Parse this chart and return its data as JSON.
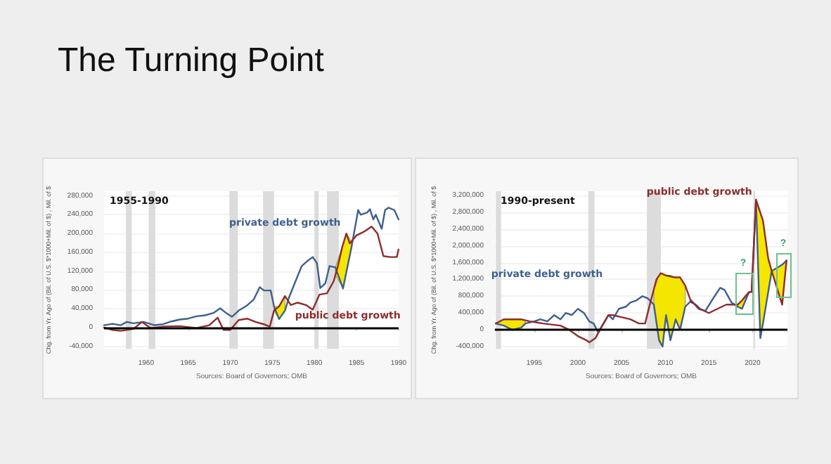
{
  "chart_data": [
    {
      "type": "line",
      "title": "The Turning Point",
      "ylabel": "Chg. from Yr. Ago of (Bil. of U.S. $*1000+Mil. of $) , Mil. of $",
      "annotations": [
        "1955-1990",
        "Sources: Board of Governors; OMB"
      ],
      "xlim": [
        1955,
        1990
      ],
      "xticks": [
        1960,
        1965,
        1970,
        1975,
        1980,
        1985,
        1990
      ],
      "ylim": [
        -45000,
        290000
      ],
      "yticks": [
        {
          "value": -40000,
          "label": "-40,000"
        },
        0,
        {
          "value": 40000,
          "label": "40,000"
        },
        {
          "value": 80000,
          "label": "80,000"
        },
        {
          "value": 120000,
          "label": "120,000"
        },
        {
          "value": 160000,
          "label": "160,000"
        },
        {
          "value": 200000,
          "label": "200,000"
        },
        {
          "value": 240000,
          "label": "240,000"
        },
        {
          "value": 280000,
          "label": "280,000"
        }
      ],
      "grid": "y",
      "marker": "none",
      "ref_lines": [
        {
          "axis": "y",
          "value": 0,
          "color": "#000000"
        }
      ],
      "bands": [
        {
          "axis": "x",
          "from": 1957.6,
          "to": 1958.3,
          "color": "#dcdcdc"
        },
        {
          "axis": "x",
          "from": 1960.3,
          "to": 1961.1,
          "color": "#dcdcdc"
        },
        {
          "axis": "x",
          "from": 1969.9,
          "to": 1970.9,
          "color": "#dcdcdc"
        },
        {
          "axis": "x",
          "from": 1973.9,
          "to": 1975.2,
          "color": "#dcdcdc"
        },
        {
          "axis": "x",
          "from": 1980.0,
          "to": 1980.5,
          "color": "#dcdcdc"
        },
        {
          "axis": "x",
          "from": 1981.5,
          "to": 1982.9,
          "color": "#dcdcdc"
        }
      ],
      "series": [
        {
          "type": "line",
          "name": "private debt growth",
          "color": "#3f5f8f",
          "x": [
            1955,
            1956,
            1957,
            1957.7,
            1958.5,
            1959.7,
            1961,
            1962,
            1963,
            1964,
            1965,
            1966,
            1967,
            1968,
            1968.8,
            1969.5,
            1970.2,
            1971,
            1972,
            1972.8,
            1973.5,
            1974,
            1974.8,
            1975.2,
            1975.8,
            1976.5,
            1977,
            1977.7,
            1978.5,
            1979.2,
            1979.8,
            1980.3,
            1980.7,
            1981.3,
            1981.8,
            1982.5,
            1983.4,
            1983.8,
            1984.4,
            1985.2,
            1985.5,
            1986.3,
            1986.6,
            1987,
            1987.3,
            1988,
            1988.4,
            1988.8,
            1989.5,
            1990
          ],
          "values": [
            5000,
            8000,
            5000,
            12000,
            9000,
            12000,
            5000,
            7000,
            13000,
            17000,
            19000,
            24000,
            26000,
            31000,
            41000,
            31000,
            23000,
            36000,
            47000,
            60000,
            86000,
            79000,
            79000,
            45000,
            18000,
            36000,
            65000,
            96000,
            131000,
            142000,
            150000,
            137000,
            84000,
            94000,
            131000,
            128000,
            83000,
            118000,
            170000,
            250000,
            240000,
            245000,
            252000,
            230000,
            240000,
            210000,
            250000,
            255000,
            250000,
            230000
          ],
          "lower": [
            null,
            null,
            null,
            null,
            null,
            null,
            null,
            null,
            null,
            null,
            null,
            null,
            null,
            null,
            null,
            null,
            null,
            null,
            null,
            null,
            null,
            null,
            null,
            36000,
            18000,
            36000,
            null,
            null,
            null,
            null,
            null,
            null,
            null,
            null,
            null,
            112000,
            83000,
            118000,
            170000,
            null,
            null,
            null,
            null,
            null,
            null,
            null,
            null,
            null,
            null,
            null
          ],
          "upper": [
            null,
            null,
            null,
            null,
            null,
            null,
            null,
            null,
            null,
            null,
            null,
            null,
            null,
            null,
            null,
            null,
            null,
            null,
            null,
            null,
            null,
            null,
            null,
            45000,
            45000,
            67000,
            null,
            null,
            null,
            null,
            null,
            null,
            null,
            null,
            null,
            128000,
            177000,
            200000,
            183000,
            null,
            null,
            null,
            null,
            null,
            null,
            null,
            null,
            null,
            null,
            null
          ]
        },
        {
          "type": "line",
          "name": "public debt growth",
          "color": "#8c2d2d",
          "x": [
            1955,
            1956,
            1957,
            1958.5,
            1959.5,
            1960.5,
            1962,
            1964,
            1966,
            1967.5,
            1968.5,
            1969.2,
            1970,
            1971,
            1972,
            1973,
            1974,
            1974.7,
            1975.2,
            1975.8,
            1976.5,
            1977.2,
            1978,
            1979,
            1979.8,
            1980.6,
            1981.5,
            1982.3,
            1982.8,
            1983.3,
            1983.8,
            1984.2,
            1985,
            1986,
            1986.8,
            1987.5,
            1988.2,
            1989,
            1989.8,
            1990
          ],
          "values": [
            0,
            -5000,
            -7000,
            -3000,
            12000,
            -1000,
            2000,
            3000,
            -1000,
            5000,
            21000,
            -5000,
            -5000,
            16000,
            19000,
            12000,
            7000,
            2000,
            36000,
            45000,
            67000,
            48000,
            53000,
            48000,
            38000,
            70000,
            73000,
            99000,
            131000,
            171000,
            200000,
            179000,
            196000,
            205000,
            215000,
            200000,
            152000,
            150000,
            150000,
            166000
          ]
        }
      ]
    },
    {
      "type": "line",
      "ylabel": "Chg. from Yr. Ago of (Bil. of U.S. $*1000+Mil. of $) , Mil. of $",
      "annotations": [
        "1990-present",
        "Sources: Board of Governors; OMB",
        "?",
        "?"
      ],
      "xlim": [
        1990.5,
        2024
      ],
      "xticks": [
        1995,
        2000,
        2005,
        2010,
        2015,
        2020
      ],
      "ylim": [
        -450000,
        3300000
      ],
      "yticks": [
        {
          "value": -400000,
          "label": "-400,000"
        },
        0,
        {
          "value": 400000,
          "label": "400,000"
        },
        {
          "value": 800000,
          "label": "800,000"
        },
        {
          "value": 1200000,
          "label": "1,200,000"
        },
        {
          "value": 1600000,
          "label": "1,600,000"
        },
        {
          "value": 2000000,
          "label": "2,000,000"
        },
        {
          "value": 2400000,
          "label": "2,400,000"
        },
        {
          "value": 2800000,
          "label": "2,800,000"
        },
        {
          "value": 3200000,
          "label": "3,200,000"
        }
      ],
      "grid": "y",
      "marker": "none",
      "ref_lines": [
        {
          "axis": "y",
          "value": 0,
          "color": "#000000"
        }
      ],
      "bands": [
        {
          "axis": "x",
          "from": 1990.6,
          "to": 1991.2,
          "color": "#dcdcdc"
        },
        {
          "axis": "x",
          "from": 2001.2,
          "to": 2001.9,
          "color": "#dcdcdc"
        },
        {
          "axis": "x",
          "from": 2007.9,
          "to": 2009.5,
          "color": "#dcdcdc"
        },
        {
          "axis": "x",
          "from": 2020.1,
          "to": 2020.3,
          "color": "#dcdcdc"
        }
      ],
      "series": [
        {
          "type": "line",
          "name": "private debt growth",
          "color": "#3f5f8f",
          "x": [
            1990.6,
            1991.5,
            1992.5,
            1993.5,
            1994,
            1995,
            1995.7,
            1996.5,
            1997.3,
            1998,
            1998.6,
            1999.3,
            2000,
            2000.7,
            2001.3,
            2001.8,
            2002.3,
            2002.8,
            2003.5,
            2004,
            2004.7,
            2005.5,
            2006,
            2006.7,
            2007.4,
            2008,
            2008.7,
            2009.3,
            2009.7,
            2010.1,
            2010.6,
            2011.2,
            2011.7,
            2012.3,
            2013,
            2013.8,
            2014.6,
            2015.5,
            2016.3,
            2016.8,
            2017.6,
            2018.3,
            2018.8,
            2019.6,
            2019.9,
            2020.4,
            2020.9,
            2021.2,
            2021.8,
            2022.2,
            2023.4,
            2023.9
          ],
          "values": [
            150000,
            100000,
            0,
            50000,
            150000,
            200000,
            250000,
            200000,
            350000,
            250000,
            400000,
            350000,
            500000,
            400000,
            200000,
            150000,
            -50000,
            100000,
            350000,
            250000,
            500000,
            550000,
            650000,
            700000,
            800000,
            750000,
            600000,
            -250000,
            -400000,
            350000,
            -250000,
            250000,
            0,
            550000,
            700000,
            500000,
            450000,
            750000,
            1000000,
            950000,
            650000,
            550000,
            500000,
            900000,
            900000,
            3100000,
            -200000,
            150000,
            900000,
            1400000,
            1550000,
            1650000
          ],
          "lower": [
            150000,
            100000,
            0,
            50000,
            150000,
            null,
            null,
            null,
            null,
            null,
            null,
            null,
            null,
            null,
            null,
            null,
            null,
            null,
            null,
            null,
            null,
            null,
            null,
            null,
            null,
            null,
            600000,
            -250000,
            -400000,
            350000,
            -250000,
            250000,
            0,
            550000,
            null,
            null,
            null,
            null,
            null,
            null,
            null,
            550000,
            500000,
            900000,
            900000,
            3100000,
            -200000,
            150000,
            900000,
            1400000,
            600000,
            1650000
          ],
          "upper": [
            150000,
            250000,
            250000,
            250000,
            200000,
            null,
            null,
            null,
            null,
            null,
            null,
            null,
            null,
            null,
            null,
            null,
            null,
            null,
            null,
            null,
            null,
            null,
            null,
            null,
            null,
            null,
            950000,
            1300000,
            1350000,
            1300000,
            1300000,
            1250000,
            1250000,
            1050000,
            null,
            null,
            null,
            null,
            null,
            null,
            null,
            600000,
            700000,
            900000,
            900000,
            3100000,
            2800000,
            2600000,
            1700000,
            1400000,
            1550000,
            1650000
          ]
        },
        {
          "type": "line",
          "name": "public debt growth",
          "color": "#8c2d2d",
          "x": [
            1990.6,
            1991.5,
            1992.5,
            1993.5,
            1994.5,
            1996,
            1998,
            1999,
            2000,
            2001,
            2001.3,
            2002,
            2002.8,
            2003.5,
            2004,
            2005,
            2006,
            2007,
            2007.7,
            2008.3,
            2009,
            2009.5,
            2010,
            2011,
            2011.7,
            2012.3,
            2013,
            2013.5,
            2014,
            2015,
            2016,
            2017,
            2018.3,
            2018.8,
            2019.6,
            2019.9,
            2020.4,
            2021.2,
            2021.8,
            2022.2,
            2023.4,
            2023.9
          ],
          "values": [
            150000,
            250000,
            250000,
            250000,
            200000,
            150000,
            100000,
            0,
            -150000,
            -250000,
            -300000,
            -200000,
            100000,
            350000,
            350000,
            300000,
            250000,
            150000,
            150000,
            650000,
            1200000,
            1350000,
            1300000,
            1250000,
            1250000,
            1050000,
            650000,
            600000,
            500000,
            400000,
            500000,
            600000,
            600000,
            700000,
            900000,
            900000,
            3100000,
            2600000,
            1700000,
            1400000,
            600000,
            1650000
          ]
        }
      ]
    }
  ]
}
